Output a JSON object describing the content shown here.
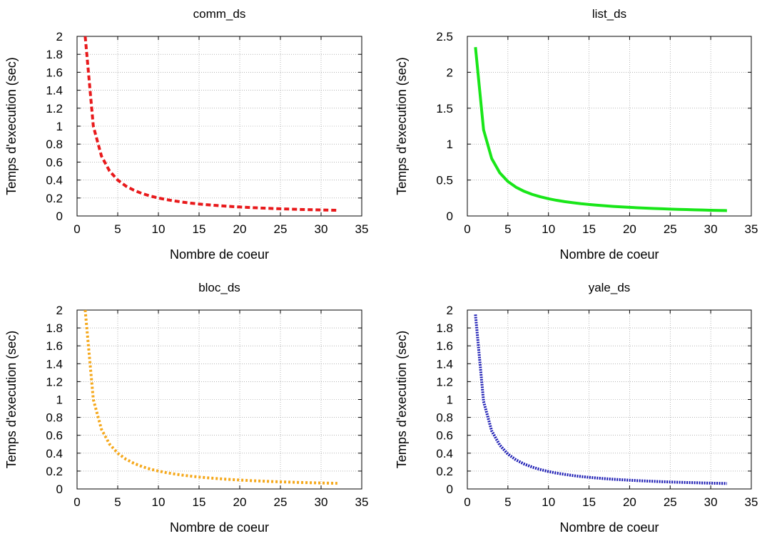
{
  "chart_data": [
    {
      "type": "line",
      "title": "comm_ds",
      "xlabel": "Nombre de coeur",
      "ylabel": "Temps d'execution (sec)",
      "xlim": [
        0,
        35
      ],
      "ylim": [
        0,
        2
      ],
      "xticks": [
        "0",
        "5",
        "10",
        "15",
        "20",
        "25",
        "30",
        "35"
      ],
      "yticks": [
        "0",
        "0.2",
        "0.4",
        "0.6",
        "0.8",
        "1",
        "1.2",
        "1.4",
        "1.6",
        "1.8",
        "2"
      ],
      "grid": true,
      "line_color": "#e8191b",
      "line_style": "dashed",
      "series": [
        {
          "x": [
            1,
            2,
            3,
            4,
            5,
            6,
            7,
            8,
            9,
            10,
            11,
            12,
            13,
            14,
            15,
            16,
            17,
            18,
            19,
            20,
            21,
            22,
            23,
            24,
            25,
            26,
            27,
            28,
            29,
            30,
            31,
            32
          ],
          "values": [
            2.0,
            1.0,
            0.667,
            0.5,
            0.4,
            0.333,
            0.286,
            0.25,
            0.222,
            0.2,
            0.182,
            0.167,
            0.154,
            0.143,
            0.133,
            0.125,
            0.118,
            0.111,
            0.105,
            0.1,
            0.095,
            0.091,
            0.087,
            0.083,
            0.08,
            0.077,
            0.074,
            0.071,
            0.069,
            0.067,
            0.065,
            0.063
          ]
        }
      ]
    },
    {
      "type": "line",
      "title": "list_ds",
      "xlabel": "Nombre de coeur",
      "ylabel": "Temps d'execution (sec)",
      "xlim": [
        0,
        35
      ],
      "ylim": [
        0,
        2.5
      ],
      "xticks": [
        "0",
        "5",
        "10",
        "15",
        "20",
        "25",
        "30",
        "35"
      ],
      "yticks": [
        "0",
        "0.5",
        "1",
        "1.5",
        "2",
        "2.5"
      ],
      "grid": true,
      "line_color": "#19e619",
      "line_style": "solid",
      "series": [
        {
          "x": [
            1,
            2,
            3,
            4,
            5,
            6,
            7,
            8,
            9,
            10,
            11,
            12,
            13,
            14,
            15,
            16,
            17,
            18,
            19,
            20,
            21,
            22,
            23,
            24,
            25,
            26,
            27,
            28,
            29,
            30,
            31,
            32
          ],
          "values": [
            2.35,
            1.2,
            0.8,
            0.6,
            0.48,
            0.4,
            0.343,
            0.3,
            0.267,
            0.24,
            0.218,
            0.2,
            0.185,
            0.171,
            0.16,
            0.15,
            0.141,
            0.133,
            0.126,
            0.12,
            0.114,
            0.109,
            0.104,
            0.1,
            0.096,
            0.092,
            0.089,
            0.086,
            0.083,
            0.08,
            0.077,
            0.075
          ]
        }
      ]
    },
    {
      "type": "line",
      "title": "bloc_ds",
      "xlabel": "Nombre de coeur",
      "ylabel": "Temps d'execution (sec)",
      "xlim": [
        0,
        35
      ],
      "ylim": [
        0,
        2
      ],
      "xticks": [
        "0",
        "5",
        "10",
        "15",
        "20",
        "25",
        "30",
        "35"
      ],
      "yticks": [
        "0",
        "0.2",
        "0.4",
        "0.6",
        "0.8",
        "1",
        "1.2",
        "1.4",
        "1.6",
        "1.8",
        "2"
      ],
      "grid": true,
      "line_color": "#f5a81b",
      "line_style": "dotted",
      "series": [
        {
          "x": [
            1,
            2,
            3,
            4,
            5,
            6,
            7,
            8,
            9,
            10,
            11,
            12,
            13,
            14,
            15,
            16,
            17,
            18,
            19,
            20,
            21,
            22,
            23,
            24,
            25,
            26,
            27,
            28,
            29,
            30,
            31,
            32
          ],
          "values": [
            2.0,
            1.0,
            0.667,
            0.5,
            0.4,
            0.333,
            0.286,
            0.25,
            0.222,
            0.2,
            0.182,
            0.167,
            0.154,
            0.143,
            0.133,
            0.125,
            0.118,
            0.111,
            0.105,
            0.1,
            0.095,
            0.091,
            0.087,
            0.083,
            0.08,
            0.077,
            0.074,
            0.071,
            0.069,
            0.067,
            0.065,
            0.063
          ]
        }
      ]
    },
    {
      "type": "line",
      "title": "yale_ds",
      "xlabel": "Nombre de coeur",
      "ylabel": "Temps d'execution (sec)",
      "xlim": [
        0,
        35
      ],
      "ylim": [
        0,
        2
      ],
      "xticks": [
        "0",
        "5",
        "10",
        "15",
        "20",
        "25",
        "30",
        "35"
      ],
      "yticks": [
        "0",
        "0.2",
        "0.4",
        "0.6",
        "0.8",
        "1",
        "1.2",
        "1.4",
        "1.6",
        "1.8",
        "2"
      ],
      "grid": true,
      "line_color": "#1c1cb4",
      "line_style": "dense-dotted",
      "series": [
        {
          "x": [
            1,
            2,
            3,
            4,
            5,
            6,
            7,
            8,
            9,
            10,
            11,
            12,
            13,
            14,
            15,
            16,
            17,
            18,
            19,
            20,
            21,
            22,
            23,
            24,
            25,
            26,
            27,
            28,
            29,
            30,
            31,
            32
          ],
          "values": [
            1.95,
            0.98,
            0.65,
            0.49,
            0.39,
            0.325,
            0.279,
            0.244,
            0.217,
            0.195,
            0.177,
            0.163,
            0.15,
            0.139,
            0.13,
            0.122,
            0.115,
            0.108,
            0.103,
            0.098,
            0.093,
            0.089,
            0.085,
            0.081,
            0.078,
            0.075,
            0.072,
            0.07,
            0.067,
            0.065,
            0.063,
            0.061
          ]
        }
      ]
    }
  ]
}
